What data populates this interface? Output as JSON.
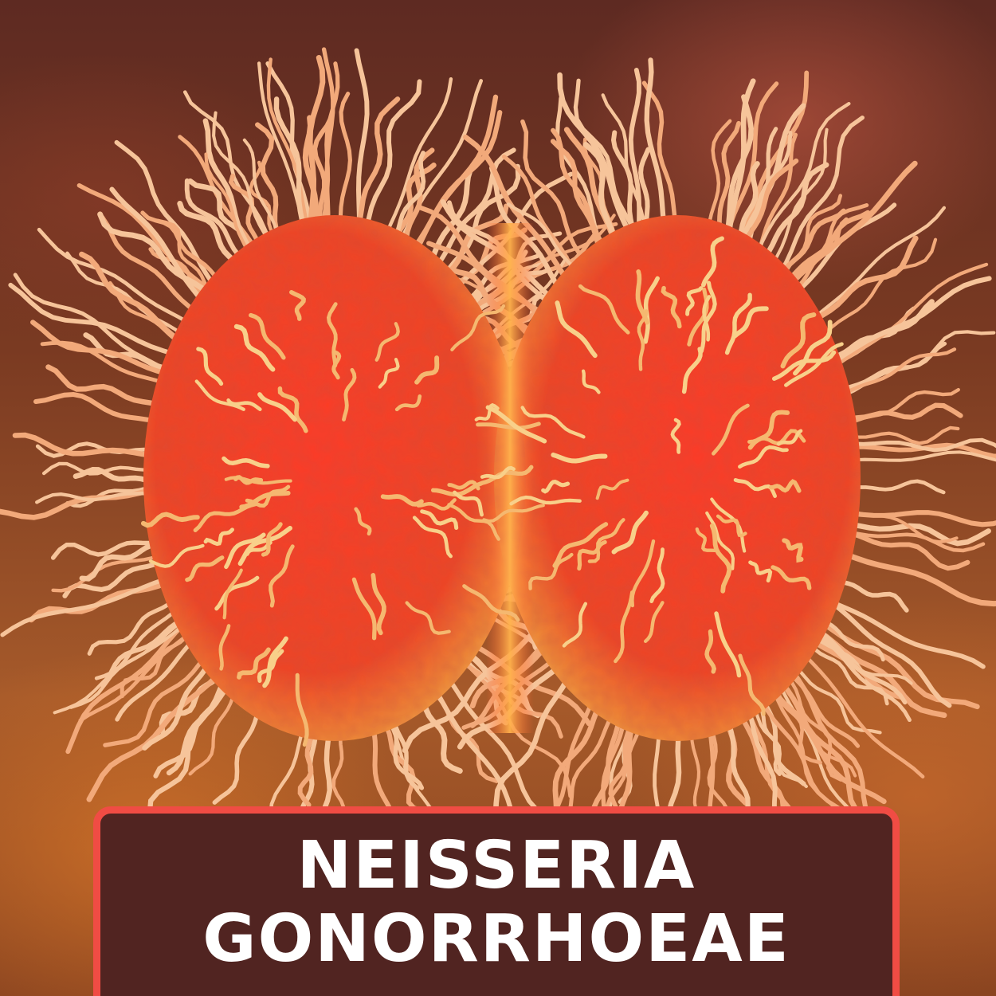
{
  "label": {
    "line1": "NEISSERIA",
    "line2": "GONORRHOEAE"
  },
  "colors": {
    "background": "#6e3020",
    "cell_core": "#ff4a2e",
    "cell_rim": "#f0a040",
    "pili": "#f6c49a",
    "label_fill": "#512421",
    "label_border": "#f04c44",
    "label_text": "#ffffff"
  },
  "subject": "diplococcus-bacterium-with-pili"
}
